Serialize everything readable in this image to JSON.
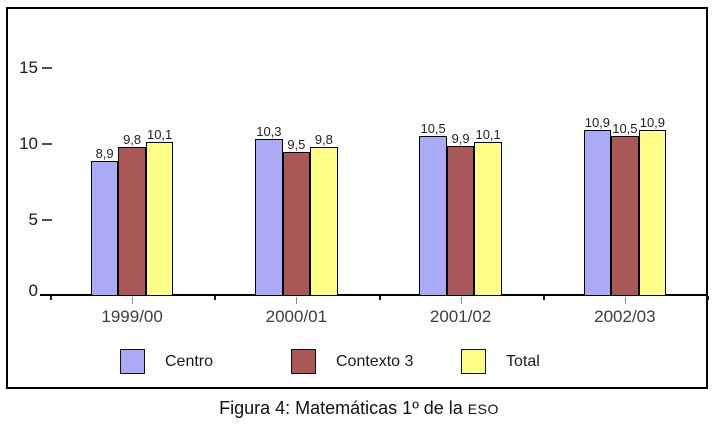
{
  "figure": {
    "caption": "Figura 4: Matemáticas 1º de la ",
    "caption_small_caps": "ESO"
  },
  "chart_data": {
    "type": "bar",
    "title": "",
    "categories": [
      "1999/00",
      "2000/01",
      "2001/02",
      "2002/03"
    ],
    "series": [
      {
        "name": "Centro",
        "color": "#AAAAF7",
        "values": [
          8.9,
          10.3,
          10.5,
          10.9
        ],
        "labels": [
          "8,9",
          "10,3",
          "10,5",
          "10,9"
        ]
      },
      {
        "name": "Contexto 3",
        "color": "#A95757",
        "values": [
          9.8,
          9.5,
          9.9,
          10.5
        ],
        "labels": [
          "9,8",
          "9,5",
          "9,9",
          "10,5"
        ]
      },
      {
        "name": "Total",
        "color": "#FFFF88",
        "values": [
          10.1,
          9.8,
          10.1,
          10.9
        ],
        "labels": [
          "10,1",
          "9,8",
          "10,1",
          "10,9"
        ]
      }
    ],
    "xlabel": "",
    "ylabel": "",
    "y_ticks": [
      0,
      5,
      10,
      15
    ],
    "ylim": [
      0,
      18.8
    ],
    "grid": false,
    "legend_position": "bottom-inside",
    "bar_border_color": "#000000",
    "axis_color": "#000000",
    "background_color": "#FFFFFF"
  }
}
